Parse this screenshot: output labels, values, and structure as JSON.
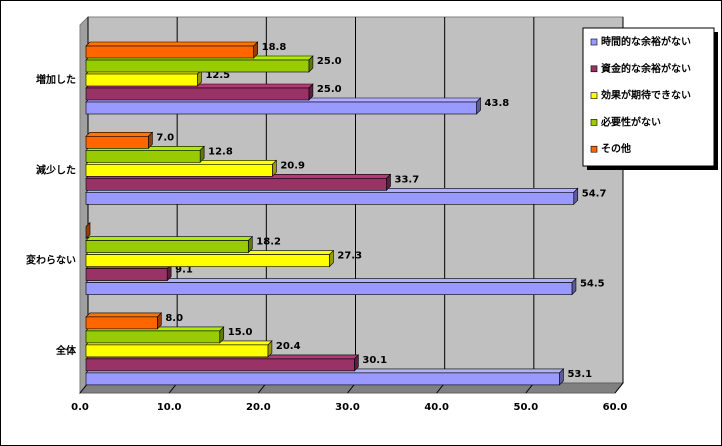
{
  "chart_data": {
    "type": "bar3d-horizontal",
    "categories": [
      "増加した",
      "減少した",
      "変わらない",
      "全体"
    ],
    "series": [
      {
        "name": "時間的な余裕がない",
        "color": "#9999ff",
        "values": [
          43.8,
          54.7,
          54.5,
          53.1
        ],
        "value_labels": [
          "43.8",
          "54.7",
          "54.5",
          "53.1"
        ]
      },
      {
        "name": "資金的な余裕がない",
        "color": "#993366",
        "values": [
          25.0,
          33.7,
          9.1,
          30.1
        ],
        "value_labels": [
          "25.0",
          "33.7",
          "9.1",
          "30.1"
        ]
      },
      {
        "name": "効果が期待できない",
        "color": "#ffff00",
        "values": [
          12.5,
          20.9,
          27.3,
          20.4
        ],
        "value_labels": [
          "12.5",
          "20.9",
          "27.3",
          "20.4"
        ]
      },
      {
        "name": "必要性がない",
        "color": "#99cc00",
        "values": [
          25.0,
          12.8,
          18.2,
          15.0
        ],
        "value_labels": [
          "25.0",
          "12.8",
          "18.2",
          "15.0"
        ]
      },
      {
        "name": "その他",
        "color": "#ff6600",
        "values": [
          18.8,
          7.0,
          0,
          8.0
        ],
        "value_labels": [
          "18.8",
          "7.0",
          null,
          "8.0"
        ]
      }
    ],
    "xlim": [
      0,
      60
    ],
    "xticks": [
      {
        "value": 0,
        "label": "0.0"
      },
      {
        "value": 10,
        "label": "10.0"
      },
      {
        "value": 20,
        "label": "20.0"
      },
      {
        "value": 30,
        "label": "30.0"
      },
      {
        "value": 40,
        "label": "40.0"
      },
      {
        "value": 50,
        "label": "50.0"
      },
      {
        "value": 60,
        "label": "60.0"
      }
    ],
    "grid": true,
    "legend": "right"
  }
}
